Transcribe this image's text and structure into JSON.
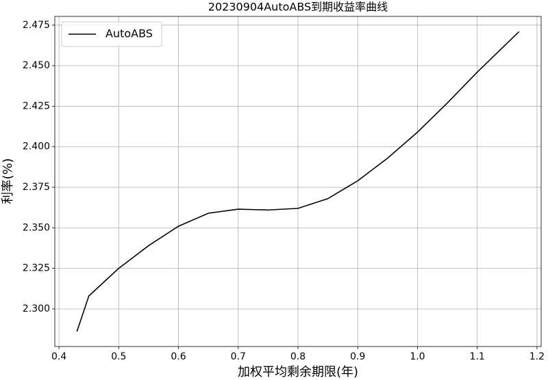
{
  "chart_data": {
    "type": "line",
    "title": "20230904AutoABS到期收益率曲线",
    "xlabel": "加权平均剩余期限(年)",
    "ylabel": "利率(%)",
    "x": [
      0.43,
      0.45,
      0.5,
      0.55,
      0.6,
      0.65,
      0.7,
      0.75,
      0.8,
      0.85,
      0.9,
      0.95,
      1.0,
      1.05,
      1.1,
      1.17
    ],
    "series": [
      {
        "name": "AutoABS",
        "color": "#000000",
        "values": [
          2.286,
          2.308,
          2.325,
          2.339,
          2.351,
          2.359,
          2.3615,
          2.361,
          2.362,
          2.368,
          2.379,
          2.393,
          2.409,
          2.427,
          2.446,
          2.471
        ]
      }
    ],
    "xlim": [
      0.393,
      1.207
    ],
    "xticks": [
      0.4,
      0.5,
      0.6,
      0.7,
      0.8,
      0.9,
      {
        "value": 1,
        "label": "1.0"
      },
      1.1,
      1.2
    ],
    "ylim": [
      2.2768,
      2.4804
    ],
    "yticks": [
      {
        "value": 2.3,
        "label": "2.300"
      },
      2.325,
      {
        "value": 2.35,
        "label": "2.350"
      },
      2.375,
      {
        "value": 2.4,
        "label": "2.400"
      },
      2.425,
      {
        "value": 2.45,
        "label": "2.450"
      },
      2.475
    ],
    "grid": true,
    "legend": "upper left"
  }
}
